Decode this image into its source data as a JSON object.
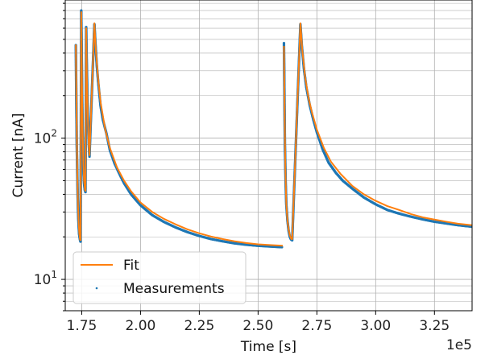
{
  "chart_data": {
    "type": "line",
    "xlabel": "Time [s]",
    "ylabel": "Current [nA]",
    "x_offset_label": "1e5",
    "xlim": [
      168000,
      341000
    ],
    "ylim": [
      6,
      950
    ],
    "yscale": "log",
    "grid": "major and minor",
    "legend": {
      "location": "lower-left"
    },
    "xticks": [
      {
        "value": 175000,
        "label": "1.75"
      },
      {
        "value": 200000,
        "label": "2.00"
      },
      {
        "value": 225000,
        "label": "2.25"
      },
      {
        "value": 250000,
        "label": "2.50"
      },
      {
        "value": 275000,
        "label": "2.75"
      },
      {
        "value": 300000,
        "label": "3.00"
      },
      {
        "value": 325000,
        "label": "3.25"
      }
    ],
    "yticks": [
      {
        "value": 10,
        "label": "10",
        "sup": "1"
      },
      {
        "value": 100,
        "label": "10",
        "sup": "2"
      }
    ],
    "series": [
      {
        "name": "Fit",
        "color": "#ff7f0e",
        "style": "line",
        "segments": [
          [
            [
              172500,
              460
            ],
            [
              172800,
              150
            ],
            [
              173100,
              60
            ],
            [
              173400,
              34
            ],
            [
              173700,
              25
            ],
            [
              174000,
              21
            ],
            [
              174300,
              19.2
            ],
            [
              174500,
              18.8
            ]
          ],
          [
            [
              174500,
              18.8
            ],
            [
              174800,
              780
            ],
            [
              175100,
              250
            ],
            [
              175400,
              110
            ],
            [
              175700,
              65
            ],
            [
              176000,
              50
            ],
            [
              176400,
              43
            ],
            [
              176600,
              42
            ]
          ],
          [
            [
              176600,
              42
            ],
            [
              176900,
              600
            ],
            [
              177200,
              270
            ],
            [
              177600,
              140
            ],
            [
              178000,
              90
            ],
            [
              178300,
              75
            ]
          ],
          [
            [
              178300,
              75
            ],
            [
              180400,
              650
            ],
            [
              181000,
              420
            ],
            [
              182000,
              260
            ],
            [
              183000,
              180
            ],
            [
              185000,
              115
            ],
            [
              187000,
              85
            ],
            [
              190000,
              62
            ],
            [
              193000,
              50
            ],
            [
              196000,
              42
            ],
            [
              200000,
              35
            ],
            [
              205000,
              30
            ],
            [
              210000,
              26.8
            ],
            [
              215000,
              24.5
            ],
            [
              220000,
              22.6
            ],
            [
              225000,
              21.2
            ],
            [
              230000,
              20.1
            ],
            [
              235000,
              19.3
            ],
            [
              240000,
              18.6
            ],
            [
              245000,
              18.1
            ],
            [
              250000,
              17.7
            ],
            [
              255000,
              17.5
            ],
            [
              260500,
              17.3
            ]
          ],
          [
            [
              261000,
              450
            ],
            [
              261300,
              140
            ],
            [
              261600,
              60
            ],
            [
              262000,
              34
            ],
            [
              262500,
              26
            ],
            [
              263000,
              22.5
            ],
            [
              263500,
              20.5
            ],
            [
              264000,
              19.5
            ],
            [
              264500,
              19.1
            ]
          ],
          [
            [
              264500,
              19.1
            ],
            [
              268000,
              650
            ],
            [
              268800,
              420
            ],
            [
              270000,
              270
            ],
            [
              271500,
              190
            ],
            [
              273000,
              150
            ],
            [
              275000,
              115
            ],
            [
              278000,
              85
            ],
            [
              281000,
              68
            ],
            [
              285000,
              56
            ],
            [
              290000,
              46
            ],
            [
              295000,
              40
            ],
            [
              300000,
              36
            ],
            [
              305000,
              33
            ],
            [
              310000,
              31
            ],
            [
              315000,
              29
            ],
            [
              320000,
              27.5
            ],
            [
              325000,
              26.5
            ],
            [
              330000,
              25.6
            ],
            [
              335000,
              24.8
            ],
            [
              341000,
              24.2
            ]
          ]
        ]
      },
      {
        "name": "Measurements",
        "color": "#1f77b4",
        "style": "dots",
        "segments": [
          [
            [
              172500,
              455
            ],
            [
              172700,
              190
            ],
            [
              172900,
              90
            ],
            [
              173100,
              58
            ],
            [
              173300,
              38
            ],
            [
              173500,
              28
            ],
            [
              173700,
              24
            ],
            [
              173900,
              21
            ],
            [
              174100,
              19.8
            ],
            [
              174300,
              19
            ],
            [
              174500,
              18.5
            ]
          ],
          [
            [
              174500,
              18.5
            ],
            [
              174800,
              800
            ],
            [
              175000,
              400
            ],
            [
              175200,
              190
            ],
            [
              175400,
              108
            ],
            [
              175600,
              72
            ],
            [
              175800,
              56
            ],
            [
              176000,
              48
            ],
            [
              176300,
              43
            ],
            [
              176600,
              41.5
            ]
          ],
          [
            [
              176600,
              41.5
            ],
            [
              176900,
              610
            ],
            [
              177100,
              380
            ],
            [
              177400,
              200
            ],
            [
              177700,
              130
            ],
            [
              178000,
              92
            ],
            [
              178300,
              74
            ]
          ],
          [
            [
              178300,
              74
            ],
            [
              180400,
              640
            ],
            [
              180800,
              480
            ],
            [
              181400,
              330
            ],
            [
              182000,
              250
            ],
            [
              183000,
              170
            ],
            [
              184000,
              135
            ],
            [
              185500,
              108
            ],
            [
              187000,
              82
            ],
            [
              189000,
              66
            ],
            [
              191000,
              56
            ],
            [
              193000,
              48
            ],
            [
              196000,
              40
            ],
            [
              200000,
              33.5
            ],
            [
              205000,
              28.5
            ],
            [
              210000,
              25.5
            ],
            [
              215000,
              23.3
            ],
            [
              220000,
              21.6
            ],
            [
              225000,
              20.3
            ],
            [
              230000,
              19.3
            ],
            [
              235000,
              18.6
            ],
            [
              240000,
              18
            ],
            [
              245000,
              17.6
            ],
            [
              250000,
              17.3
            ],
            [
              255000,
              17.1
            ],
            [
              260500,
              16.9
            ]
          ],
          [
            [
              261000,
              470
            ],
            [
              261200,
              200
            ],
            [
              261400,
              90
            ],
            [
              261700,
              50
            ],
            [
              262000,
              34
            ],
            [
              262500,
              26
            ],
            [
              263000,
              22
            ],
            [
              263500,
              20
            ],
            [
              264000,
              19.2
            ],
            [
              264500,
              18.9
            ]
          ],
          [
            [
              264500,
              18.9
            ],
            [
              268000,
              640
            ],
            [
              268600,
              450
            ],
            [
              269500,
              310
            ],
            [
              270500,
              230
            ],
            [
              272000,
              170
            ],
            [
              273500,
              135
            ],
            [
              275000,
              110
            ],
            [
              277500,
              83
            ],
            [
              280000,
              67
            ],
            [
              283000,
              57
            ],
            [
              286000,
              50
            ],
            [
              290000,
              44
            ],
            [
              295000,
              38
            ],
            [
              300000,
              34
            ],
            [
              305000,
              31
            ],
            [
              310000,
              29.2
            ],
            [
              315000,
              27.8
            ],
            [
              320000,
              26.6
            ],
            [
              325000,
              25.6
            ],
            [
              330000,
              24.9
            ],
            [
              335000,
              24.2
            ],
            [
              341000,
              23.6
            ]
          ]
        ]
      }
    ]
  }
}
